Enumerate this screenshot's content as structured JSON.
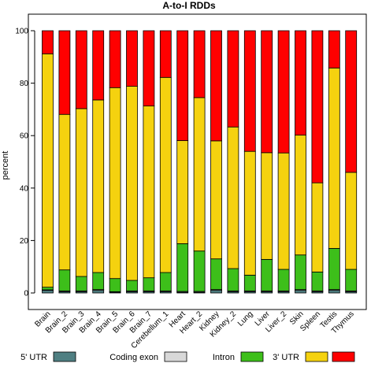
{
  "chart_data": {
    "type": "bar",
    "stacked": true,
    "title": "A-to-I RDDs",
    "xlabel": "",
    "ylabel": "percent",
    "ylim": [
      0,
      100
    ],
    "yticks": [
      0,
      20,
      40,
      60,
      80,
      100
    ],
    "categories": [
      "Brain",
      "Brain_2",
      "Brain_3",
      "Brain_4",
      "Brain_5",
      "Brain_6",
      "Brain_7",
      "Cerebellum_1",
      "Heart",
      "Heart_2",
      "Kidney",
      "Kidney_2",
      "Lung",
      "Liver",
      "Liver_2",
      "Skin",
      "Spleen",
      "Testis",
      "Thymus"
    ],
    "series": [
      {
        "name": "5' UTR",
        "color": "#4f7f82",
        "values": [
          1.0,
          0.5,
          0.5,
          1.0,
          0.3,
          0.5,
          0.5,
          0.5,
          0.3,
          0.3,
          1.0,
          0.5,
          0.5,
          0.5,
          0.5,
          1.0,
          0.5,
          1.0,
          0.5
        ]
      },
      {
        "name": "Coding exon",
        "color": "#d8d8d8",
        "values": [
          0.2,
          0.3,
          0.3,
          0.3,
          0.2,
          0.3,
          0.3,
          0.3,
          0.3,
          0.3,
          0.3,
          0.3,
          0.3,
          0.3,
          0.3,
          0.3,
          0.3,
          0.3,
          0.3
        ]
      },
      {
        "name": "Intron",
        "color": "#3dbf1a",
        "values": [
          1.0,
          8.0,
          5.5,
          6.5,
          5.0,
          4.0,
          5.0,
          7.0,
          18.2,
          15.4,
          11.7,
          8.5,
          6.0,
          12.0,
          8.2,
          13.2,
          7.2,
          15.7,
          8.2
        ]
      },
      {
        "name": "3' UTR",
        "color": "#f5d20f",
        "values": [
          89.0,
          59.3,
          64.0,
          65.8,
          72.8,
          74.0,
          65.5,
          74.4,
          39.3,
          58.5,
          45.0,
          54.0,
          47.2,
          40.7,
          44.4,
          45.7,
          34.0,
          68.8,
          37.0
        ]
      },
      {
        "name": "",
        "color": "#ff0000",
        "values": [
          8.8,
          31.9,
          29.7,
          26.4,
          21.7,
          21.2,
          28.7,
          17.8,
          41.9,
          25.5,
          42.0,
          36.7,
          46.0,
          46.5,
          46.6,
          39.8,
          58.0,
          14.2,
          54.0
        ]
      }
    ],
    "legend": {
      "position": "bottom",
      "labels": [
        "5' UTR",
        "Coding exon",
        "Intron",
        "3' UTR",
        ""
      ]
    },
    "grid": false
  }
}
